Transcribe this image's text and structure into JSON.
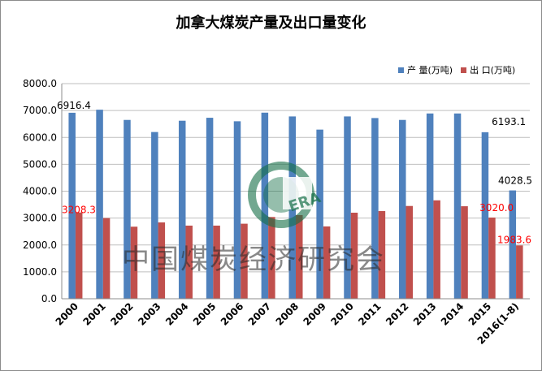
{
  "chart_data": {
    "type": "bar",
    "title": "加拿大煤炭产量及出口量变化",
    "categories": [
      "2000",
      "2001",
      "2002",
      "2003",
      "2004",
      "2005",
      "2006",
      "2007",
      "2008",
      "2009",
      "2010",
      "2011",
      "2012",
      "2013",
      "2014",
      "2015",
      "2016(1-8)"
    ],
    "series": [
      {
        "name": "产 量(万吨)",
        "color": "#4f81bd",
        "values": [
          6916.4,
          7030,
          6650,
          6200,
          6620,
          6730,
          6600,
          6920,
          6780,
          6290,
          6780,
          6720,
          6650,
          6890,
          6890,
          6193.1,
          4028.5
        ]
      },
      {
        "name": "出 口(万吨)",
        "color": "#c0504d",
        "values": [
          3208.3,
          3000,
          2680,
          2840,
          2720,
          2720,
          2790,
          3040,
          3110,
          2690,
          3200,
          3260,
          3450,
          3660,
          3440,
          3020.0,
          1983.6
        ]
      }
    ],
    "ylim": [
      0,
      8000
    ],
    "yticks": [
      "0.0",
      "1000.0",
      "2000.0",
      "3000.0",
      "4000.0",
      "5000.0",
      "6000.0",
      "7000.0",
      "8000.0"
    ],
    "grid": true,
    "legend": "top-right",
    "data_labels": [
      {
        "series": 0,
        "index": 0,
        "text": "6916.4",
        "color": "#000000"
      },
      {
        "series": 0,
        "index": 15,
        "text": "6193.1",
        "color": "#000000"
      },
      {
        "series": 0,
        "index": 16,
        "text": "4028.5",
        "color": "#000000"
      },
      {
        "series": 1,
        "index": 0,
        "text": "3208.3",
        "color": "#ff0000"
      },
      {
        "series": 1,
        "index": 15,
        "text": "3020.0",
        "color": "#ff0000"
      },
      {
        "series": 1,
        "index": 16,
        "text": "1983.6",
        "color": "#ff0000"
      }
    ]
  },
  "watermark": "中国煤炭经济研究会",
  "logo_text": "ERA"
}
